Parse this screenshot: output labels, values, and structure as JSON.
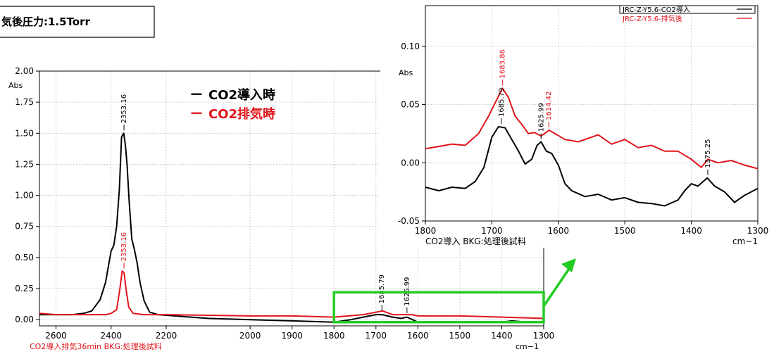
{
  "condition_label": "気後圧力:1.5Torr",
  "legend": {
    "black_label": "CO2導入時",
    "red_label": "CO2排気時",
    "prefix_dash": "ー"
  },
  "colors": {
    "black": "#000000",
    "red": "#e0151c",
    "highlight": "#22cc22"
  },
  "chart_data": [
    {
      "type": "line",
      "id": "main",
      "xlabel": "cm−1",
      "ylabel": "Abs",
      "caption": "CO2導入排気36min  BKG:処理後試料",
      "xlim": [
        2660,
        1300
      ],
      "ylim": [
        -0.05,
        2.0
      ],
      "xticks": [
        2600,
        2400,
        2200,
        2000,
        1900,
        1800,
        1700,
        1600,
        1500,
        1400,
        1300
      ],
      "yticks": [
        "0.00",
        "0.25",
        "0.50",
        "0.75",
        "1.00",
        "1.25",
        "1.50",
        "1.75",
        "2.00"
      ],
      "grid": "dotted",
      "series": [
        {
          "name": "CO2導入時",
          "color": "#000000",
          "points": [
            [
              2660,
              0.04
            ],
            [
              2600,
              0.04
            ],
            [
              2540,
              0.04
            ],
            [
              2500,
              0.05
            ],
            [
              2470,
              0.07
            ],
            [
              2440,
              0.16
            ],
            [
              2420,
              0.3
            ],
            [
              2400,
              0.55
            ],
            [
              2390,
              0.6
            ],
            [
              2380,
              0.75
            ],
            [
              2370,
              1.05
            ],
            [
              2362,
              1.47
            ],
            [
              2354,
              1.5
            ],
            [
              2348,
              1.4
            ],
            [
              2342,
              1.25
            ],
            [
              2335,
              0.97
            ],
            [
              2325,
              0.65
            ],
            [
              2315,
              0.56
            ],
            [
              2305,
              0.45
            ],
            [
              2295,
              0.3
            ],
            [
              2280,
              0.15
            ],
            [
              2260,
              0.06
            ],
            [
              2230,
              0.04
            ],
            [
              2180,
              0.03
            ],
            [
              2100,
              0.01
            ],
            [
              2000,
              0.0
            ],
            [
              1900,
              -0.01
            ],
            [
              1800,
              -0.02
            ],
            [
              1760,
              0.0
            ],
            [
              1730,
              0.02
            ],
            [
              1700,
              0.04
            ],
            [
              1685,
              0.04
            ],
            [
              1660,
              0.02
            ],
            [
              1640,
              0.01
            ],
            [
              1626,
              0.02
            ],
            [
              1600,
              -0.02
            ],
            [
              1500,
              -0.02
            ],
            [
              1400,
              -0.02
            ],
            [
              1376,
              -0.01
            ],
            [
              1340,
              -0.02
            ],
            [
              1300,
              -0.02
            ]
          ]
        },
        {
          "name": "CO2排気時",
          "color": "#e0151c",
          "points": [
            [
              2660,
              0.05
            ],
            [
              2600,
              0.04
            ],
            [
              2500,
              0.04
            ],
            [
              2420,
              0.04
            ],
            [
              2400,
              0.05
            ],
            [
              2380,
              0.08
            ],
            [
              2368,
              0.25
            ],
            [
              2360,
              0.39
            ],
            [
              2353,
              0.38
            ],
            [
              2346,
              0.25
            ],
            [
              2336,
              0.1
            ],
            [
              2320,
              0.05
            ],
            [
              2280,
              0.04
            ],
            [
              2200,
              0.04
            ],
            [
              2000,
              0.03
            ],
            [
              1900,
              0.03
            ],
            [
              1800,
              0.02
            ],
            [
              1730,
              0.04
            ],
            [
              1700,
              0.06
            ],
            [
              1684,
              0.07
            ],
            [
              1660,
              0.04
            ],
            [
              1614,
              0.04
            ],
            [
              1600,
              0.03
            ],
            [
              1500,
              0.03
            ],
            [
              1400,
              0.02
            ],
            [
              1300,
              0.01
            ]
          ]
        }
      ],
      "annotations": [
        {
          "label": "2353.16",
          "x": 2353.16,
          "y": 1.5,
          "color": "black"
        },
        {
          "label": "2353.16",
          "x": 2353.16,
          "y": 0.39,
          "color": "red"
        },
        {
          "label": "1685.79",
          "x": 1685.79,
          "y": 0.05,
          "color": "black"
        },
        {
          "label": "1625.99",
          "x": 1625.99,
          "y": 0.03,
          "color": "black"
        }
      ],
      "highlight_box": {
        "x": [
          1800,
          1300
        ],
        "y": [
          -0.02,
          0.22
        ]
      }
    },
    {
      "type": "line",
      "id": "inset",
      "xlabel": "cm−1",
      "ylabel": "Abs",
      "caption": "CO2導入  BKG:処理後試料",
      "xlim": [
        1800,
        1300
      ],
      "ylim": [
        -0.05,
        0.135
      ],
      "xticks": [
        1800,
        1700,
        1600,
        1500,
        1400,
        1300
      ],
      "yticks": [
        "-0.05",
        "0.00",
        "0.05",
        "0.10"
      ],
      "grid": "dotted",
      "legend": [
        {
          "label": "JRC-Z-Y5.6-CO2導入",
          "color": "black"
        },
        {
          "label": "JRC-Z-Y5.6-排気後",
          "color": "red"
        }
      ],
      "series": [
        {
          "name": "JRC-Z-Y5.6-CO2導入",
          "color": "#000000",
          "points": [
            [
              1800,
              -0.021
            ],
            [
              1780,
              -0.024
            ],
            [
              1760,
              -0.021
            ],
            [
              1740,
              -0.022
            ],
            [
              1725,
              -0.016
            ],
            [
              1712,
              -0.004
            ],
            [
              1700,
              0.022
            ],
            [
              1690,
              0.031
            ],
            [
              1680,
              0.03
            ],
            [
              1670,
              0.02
            ],
            [
              1660,
              0.01
            ],
            [
              1650,
              -0.001
            ],
            [
              1640,
              0.003
            ],
            [
              1632,
              0.015
            ],
            [
              1626,
              0.018
            ],
            [
              1618,
              0.01
            ],
            [
              1610,
              0.008
            ],
            [
              1600,
              -0.002
            ],
            [
              1590,
              -0.018
            ],
            [
              1580,
              -0.024
            ],
            [
              1560,
              -0.029
            ],
            [
              1540,
              -0.027
            ],
            [
              1520,
              -0.032
            ],
            [
              1500,
              -0.03
            ],
            [
              1480,
              -0.034
            ],
            [
              1460,
              -0.035
            ],
            [
              1440,
              -0.037
            ],
            [
              1420,
              -0.032
            ],
            [
              1410,
              -0.024
            ],
            [
              1400,
              -0.018
            ],
            [
              1390,
              -0.02
            ],
            [
              1376,
              -0.013
            ],
            [
              1365,
              -0.02
            ],
            [
              1350,
              -0.025
            ],
            [
              1335,
              -0.034
            ],
            [
              1320,
              -0.028
            ],
            [
              1300,
              -0.022
            ]
          ]
        },
        {
          "name": "JRC-Z-Y5.6-排気後",
          "color": "#e0151c",
          "points": [
            [
              1800,
              0.012
            ],
            [
              1780,
              0.014
            ],
            [
              1760,
              0.016
            ],
            [
              1740,
              0.015
            ],
            [
              1720,
              0.025
            ],
            [
              1705,
              0.04
            ],
            [
              1692,
              0.055
            ],
            [
              1684,
              0.064
            ],
            [
              1675,
              0.056
            ],
            [
              1665,
              0.04
            ],
            [
              1655,
              0.033
            ],
            [
              1645,
              0.025
            ],
            [
              1636,
              0.026
            ],
            [
              1626,
              0.023
            ],
            [
              1614,
              0.028
            ],
            [
              1605,
              0.025
            ],
            [
              1590,
              0.02
            ],
            [
              1570,
              0.018
            ],
            [
              1540,
              0.024
            ],
            [
              1520,
              0.016
            ],
            [
              1500,
              0.02
            ],
            [
              1480,
              0.013
            ],
            [
              1460,
              0.015
            ],
            [
              1440,
              0.01
            ],
            [
              1420,
              0.01
            ],
            [
              1400,
              0.003
            ],
            [
              1385,
              -0.004
            ],
            [
              1375,
              0.003
            ],
            [
              1360,
              0.0
            ],
            [
              1340,
              0.002
            ],
            [
              1320,
              -0.002
            ],
            [
              1300,
              -0.005
            ]
          ]
        }
      ],
      "annotations": [
        {
          "label": "1683.86",
          "x": 1683.86,
          "y": 0.064,
          "color": "red"
        },
        {
          "label": "1685.79",
          "x": 1685.79,
          "y": 0.031,
          "color": "black"
        },
        {
          "label": "1625.99",
          "x": 1625.99,
          "y": 0.018,
          "color": "black"
        },
        {
          "label": "1614.42",
          "x": 1614.42,
          "y": 0.028,
          "color": "red"
        },
        {
          "label": "1375.25",
          "x": 1375.25,
          "y": -0.013,
          "color": "black"
        }
      ]
    }
  ]
}
